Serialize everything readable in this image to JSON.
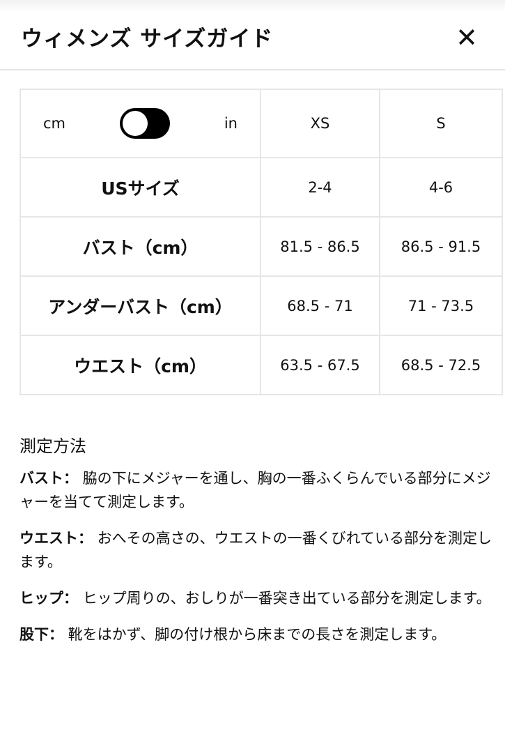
{
  "header": {
    "title": "ウィメンズ サイズガイド",
    "close_label": "✕"
  },
  "table": {
    "unit_left": "cm",
    "unit_right": "in",
    "unit_toggle_state": "cm",
    "sizes": [
      "XS",
      "S"
    ],
    "rows": [
      {
        "label": "USサイズ",
        "values": [
          "2-4",
          "4-6"
        ]
      },
      {
        "label": "バスト（cm）",
        "values": [
          "81.5 - 86.5",
          "86.5 - 91.5"
        ]
      },
      {
        "label": "アンダーバスト（cm）",
        "values": [
          "68.5 - 71",
          "71 - 73.5"
        ]
      },
      {
        "label": "ウエスト（cm）",
        "values": [
          "63.5 - 67.5",
          "68.5 - 72.5"
        ]
      }
    ]
  },
  "measure": {
    "heading": "測定方法",
    "items": [
      {
        "term": "バスト：",
        "text": "脇の下にメジャーを通し、胸の一番ふくらんでいる部分にメジャーを当てて測定します。"
      },
      {
        "term": "ウエスト：",
        "text": "おへその高さの、ウエストの一番くびれている部分を測定します。"
      },
      {
        "term": "ヒップ：",
        "text": "ヒップ周りの、おしりが一番突き出ている部分を測定します。"
      },
      {
        "term": "股下：",
        "text": "靴をはかず、脚の付け根から床までの長さを測定します。"
      }
    ]
  }
}
